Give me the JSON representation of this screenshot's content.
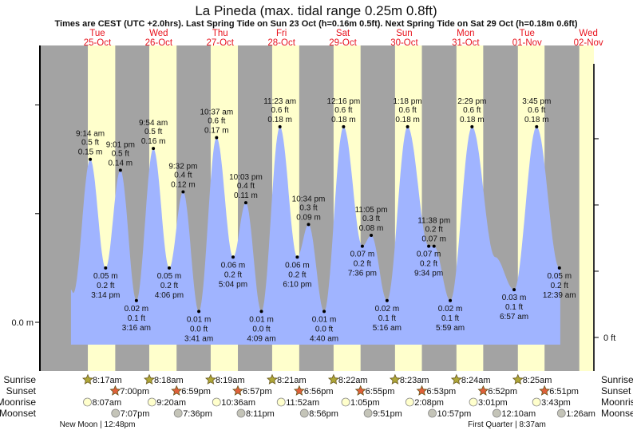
{
  "chart_data": {
    "type": "area",
    "title": "La Pineda (max. tidal range 0.25m 0.8ft)",
    "subtitle": "Times are CEST (UTC +2.0hrs). Last Spring Tide on Sun 23 Oct (h=0.16m 0.5ft). Next Spring Tide on Sat 29 Oct (h=0.18m 0.6ft)",
    "y_left_label": "0.0 m",
    "y_right_label": "0 ft",
    "ylim_m": [
      -0.02,
      0.26
    ],
    "days": [
      {
        "name": "Tue",
        "date": "25-Oct"
      },
      {
        "name": "Wed",
        "date": "26-Oct"
      },
      {
        "name": "Thu",
        "date": "27-Oct"
      },
      {
        "name": "Fri",
        "date": "28-Oct"
      },
      {
        "name": "Sat",
        "date": "29-Oct"
      },
      {
        "name": "Sun",
        "date": "30-Oct"
      },
      {
        "name": "Mon",
        "date": "31-Oct"
      },
      {
        "name": "Tue",
        "date": "01-Nov"
      },
      {
        "name": "Wed",
        "date": "02-Nov"
      }
    ],
    "tides": [
      {
        "day": 0,
        "time": "9:14 am",
        "type": "high",
        "m": "0.15",
        "ft": "0.5"
      },
      {
        "day": 0,
        "time": "3:14 pm",
        "type": "low",
        "m": "0.05",
        "ft": "0.2"
      },
      {
        "day": 0,
        "time": "9:01 pm",
        "type": "high",
        "m": "0.14",
        "ft": "0.5"
      },
      {
        "day": 1,
        "time": "3:16 am",
        "type": "low",
        "m": "0.02",
        "ft": "0.1"
      },
      {
        "day": 1,
        "time": "9:54 am",
        "type": "high",
        "m": "0.16",
        "ft": "0.5"
      },
      {
        "day": 1,
        "time": "4:06 pm",
        "type": "low",
        "m": "0.05",
        "ft": "0.2"
      },
      {
        "day": 1,
        "time": "9:32 pm",
        "type": "high",
        "m": "0.12",
        "ft": "0.4"
      },
      {
        "day": 2,
        "time": "3:41 am",
        "type": "low",
        "m": "0.01",
        "ft": "0.0"
      },
      {
        "day": 2,
        "time": "10:37 am",
        "type": "high",
        "m": "0.17",
        "ft": "0.6"
      },
      {
        "day": 2,
        "time": "5:04 pm",
        "type": "low",
        "m": "0.06",
        "ft": "0.2"
      },
      {
        "day": 2,
        "time": "10:03 pm",
        "type": "high",
        "m": "0.11",
        "ft": "0.4"
      },
      {
        "day": 3,
        "time": "4:09 am",
        "type": "low",
        "m": "0.01",
        "ft": "0.0"
      },
      {
        "day": 3,
        "time": "11:23 am",
        "type": "high",
        "m": "0.18",
        "ft": "0.6"
      },
      {
        "day": 3,
        "time": "6:10 pm",
        "type": "low",
        "m": "0.06",
        "ft": "0.2"
      },
      {
        "day": 3,
        "time": "10:34 pm",
        "type": "high",
        "m": "0.09",
        "ft": "0.3"
      },
      {
        "day": 4,
        "time": "4:40 am",
        "type": "low",
        "m": "0.01",
        "ft": "0.0"
      },
      {
        "day": 4,
        "time": "12:16 pm",
        "type": "high",
        "m": "0.18",
        "ft": "0.6"
      },
      {
        "day": 4,
        "time": "7:36 pm",
        "type": "low",
        "m": "0.07",
        "ft": "0.2"
      },
      {
        "day": 4,
        "time": "11:05 pm",
        "type": "high",
        "m": "0.08",
        "ft": "0.3"
      },
      {
        "day": 5,
        "time": "5:16 am",
        "type": "low",
        "m": "0.02",
        "ft": "0.1"
      },
      {
        "day": 5,
        "time": "1:18 pm",
        "type": "high",
        "m": "0.18",
        "ft": "0.6"
      },
      {
        "day": 5,
        "time": "9:34 pm",
        "type": "low",
        "m": "0.07",
        "ft": "0.2"
      },
      {
        "day": 5,
        "time": "11:38 pm",
        "type": "high",
        "m": "0.07",
        "ft": "0.2"
      },
      {
        "day": 6,
        "time": "5:59 am",
        "type": "low",
        "m": "0.02",
        "ft": "0.1"
      },
      {
        "day": 6,
        "time": "2:29 pm",
        "type": "high",
        "m": "0.18",
        "ft": "0.6"
      },
      {
        "day": 7,
        "time": "6:57 am",
        "type": "low",
        "m": "0.03",
        "ft": "0.1"
      },
      {
        "day": 7,
        "time": "3:45 pm",
        "type": "high",
        "m": "0.18",
        "ft": "0.6"
      },
      {
        "day": 8,
        "time": "12:39 am",
        "type": "low",
        "m": "0.05",
        "ft": "0.2"
      }
    ],
    "curve_extra_points": [
      {
        "hours": 1.7,
        "m": 0.03
      },
      {
        "hours": 2.6,
        "m": 0.027
      },
      {
        "hours": 167.5,
        "m": 0.06
      },
      {
        "hours": 193.0,
        "m": 0.052
      }
    ],
    "row_labels": {
      "sunrise": "Sunrise",
      "sunset": "Sunset",
      "moonrise": "Moonrise",
      "moonset": "Moonset"
    },
    "sunrise": [
      {
        "day": 0,
        "time": "8:17am"
      },
      {
        "day": 1,
        "time": "8:18am"
      },
      {
        "day": 2,
        "time": "8:19am"
      },
      {
        "day": 3,
        "time": "8:21am"
      },
      {
        "day": 4,
        "time": "8:22am"
      },
      {
        "day": 5,
        "time": "8:23am"
      },
      {
        "day": 6,
        "time": "8:24am"
      },
      {
        "day": 7,
        "time": "8:25am"
      }
    ],
    "sunset": [
      {
        "day": 0,
        "time": "7:00pm"
      },
      {
        "day": 1,
        "time": "6:59pm"
      },
      {
        "day": 2,
        "time": "6:57pm"
      },
      {
        "day": 3,
        "time": "6:56pm"
      },
      {
        "day": 4,
        "time": "6:55pm"
      },
      {
        "day": 5,
        "time": "6:53pm"
      },
      {
        "day": 6,
        "time": "6:52pm"
      },
      {
        "day": 7,
        "time": "6:51pm"
      }
    ],
    "moonrise": [
      {
        "day": 0,
        "time": "8:07am"
      },
      {
        "day": 1,
        "time": "9:20am"
      },
      {
        "day": 2,
        "time": "10:36am"
      },
      {
        "day": 3,
        "time": "11:52am"
      },
      {
        "day": 4,
        "time": "1:05pm"
      },
      {
        "day": 5,
        "time": "2:08pm"
      },
      {
        "day": 6,
        "time": "3:01pm"
      },
      {
        "day": 7,
        "time": "3:43pm"
      }
    ],
    "moonset": [
      {
        "day": 0,
        "time": "7:07pm"
      },
      {
        "day": 1,
        "time": "7:36pm"
      },
      {
        "day": 2,
        "time": "8:11pm"
      },
      {
        "day": 3,
        "time": "8:56pm"
      },
      {
        "day": 4,
        "time": "9:51pm"
      },
      {
        "day": 5,
        "time": "10:57pm"
      },
      {
        "day": 7,
        "time": "12:10am"
      },
      {
        "day": 8,
        "time": "1:26am"
      }
    ],
    "moon_phases": [
      {
        "label": "New Moon | 12:48pm"
      },
      {
        "label": "First Quarter | 8:37am"
      }
    ],
    "colors": {
      "night": "#a3a3a3",
      "day": "#ffffcc",
      "water": "#a0b4ff",
      "day_label": "#e8141e",
      "sun_rise": "#b0a838",
      "sun_set": "#e0603a",
      "moon_rise": "#ffffcc",
      "moon_set": "#c4c4b8"
    }
  }
}
